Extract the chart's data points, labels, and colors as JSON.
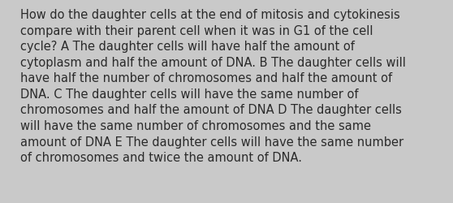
{
  "background_color": "#c9c9c9",
  "text_color": "#2a2a2a",
  "font_size": 10.5,
  "font_family": "DejaVu Sans",
  "lines": [
    "How do the daughter cells at the end of mitosis and cytokinesis",
    "compare with their parent cell when it was in G1 of the cell",
    "cycle? A The daughter cells will have half the amount of",
    "cytoplasm and half the amount of DNA. B The daughter cells will",
    "have half the number of chromosomes and half the amount of",
    "DNA. C The daughter cells will have the same number of",
    "chromosomes and half the amount of DNA D The daughter cells",
    "will have the same number of chromosomes and the same",
    "amount of DNA E The daughter cells will have the same number",
    "of chromosomes and twice the amount of DNA."
  ],
  "fig_width": 5.58,
  "fig_height": 2.51,
  "dpi": 100
}
